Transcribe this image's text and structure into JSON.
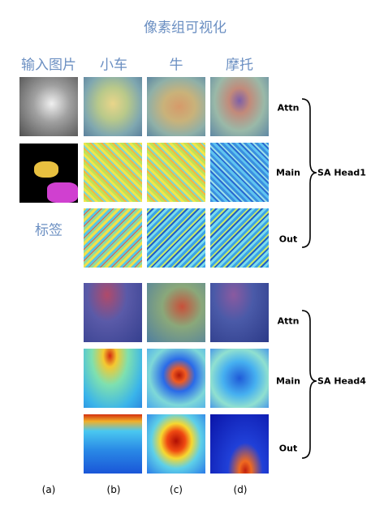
{
  "title": "像素组可视化",
  "columns": [
    "输入图片",
    "小车",
    "牛",
    "摩托"
  ],
  "label_caption": "标签",
  "heads": [
    {
      "name": "SA Head1",
      "rows": [
        "Attn",
        "Main",
        "Out"
      ]
    },
    {
      "name": "SA Head4",
      "rows": [
        "Attn",
        "Main",
        "Out"
      ]
    }
  ],
  "captions": [
    "(a)",
    "(b)",
    "(c)",
    "(d)"
  ]
}
